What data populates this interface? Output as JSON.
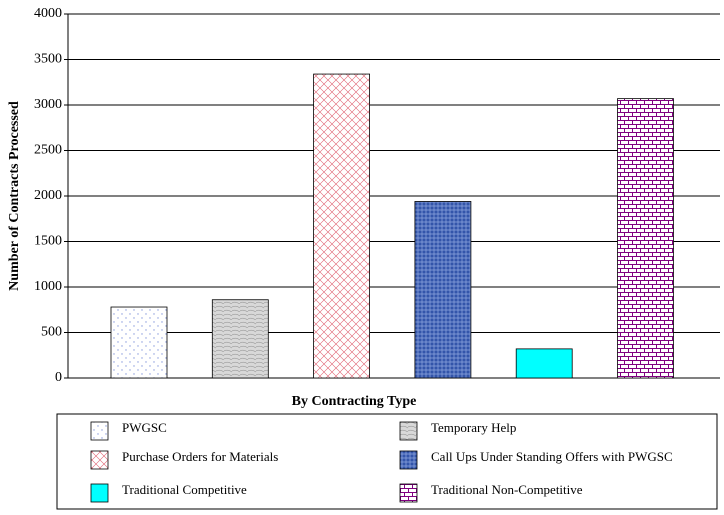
{
  "chart_data": {
    "type": "bar",
    "y_label": "Number of Contracts Processed",
    "x_label": "By Contracting Type",
    "series": [
      {
        "name": "PWGSC",
        "color": "#8899dd",
        "pattern": "dots",
        "values": [
          780
        ]
      },
      {
        "name": "Temporary Help",
        "color": "#999999",
        "pattern": "marble",
        "values": [
          860
        ]
      },
      {
        "name": "Purchase Orders for Materials",
        "color": "#e06070",
        "pattern": "crosshatch",
        "values": [
          3340
        ]
      },
      {
        "name": "Call Ups Under Standing Offers with PWGSC",
        "color": "#3355aa",
        "pattern": "weave",
        "values": [
          1940
        ]
      },
      {
        "name": "Traditional Competitive",
        "color": "#00ffff",
        "pattern": "solid",
        "values": [
          320
        ]
      },
      {
        "name": "Traditional Non-Competitive",
        "color": "#800080",
        "pattern": "brick",
        "values": [
          3070
        ]
      }
    ],
    "ylim": [
      0,
      4000
    ],
    "yticks": [
      0,
      500,
      1000,
      1500,
      2000,
      2500,
      3000,
      3500,
      4000
    ],
    "grid": true
  }
}
